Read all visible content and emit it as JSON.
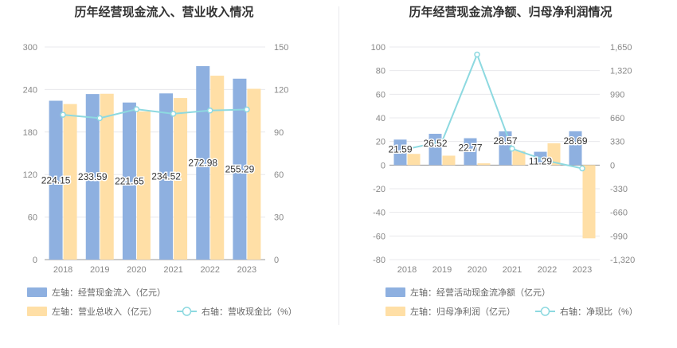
{
  "chart_data": [
    {
      "type": "bar",
      "title": "历年经营现金流入、营业收入情况",
      "categories": [
        "2018",
        "2019",
        "2020",
        "2021",
        "2022",
        "2023"
      ],
      "left_axis": {
        "min": 0,
        "max": 300,
        "ticks": [
          "0",
          "60",
          "120",
          "180",
          "240",
          "300"
        ]
      },
      "right_axis": {
        "min": 0,
        "max": 150,
        "ticks": [
          "0",
          "30",
          "60",
          "90",
          "120",
          "150"
        ]
      },
      "series": [
        {
          "name": "左轴：经营现金流入（亿元）",
          "kind": "bar",
          "axis": "left",
          "color": "#8eb0e0",
          "values": [
            224.15,
            233.59,
            221.65,
            234.52,
            272.98,
            255.29
          ],
          "labels": [
            "224.15",
            "233.59",
            "221.65",
            "234.52",
            "272.98",
            "255.29"
          ]
        },
        {
          "name": "左轴：营业总收入（亿元）",
          "kind": "bar",
          "axis": "left",
          "color": "#ffdfa6",
          "values": [
            219.5,
            234.0,
            209.0,
            228.0,
            259.5,
            241.0
          ]
        },
        {
          "name": "右轴：营收现金比（%）",
          "kind": "line",
          "axis": "right",
          "color": "#8dd9e0",
          "values": [
            102.2,
            99.8,
            106.1,
            102.9,
            105.2,
            105.9
          ]
        }
      ]
    },
    {
      "type": "bar",
      "title": "历年经营现金流净额、归母净利润情况",
      "categories": [
        "2018",
        "2019",
        "2020",
        "2021",
        "2022",
        "2023"
      ],
      "left_axis": {
        "min": -80,
        "max": 100,
        "ticks": [
          "-80",
          "-60",
          "-40",
          "-20",
          "0",
          "20",
          "40",
          "60",
          "80",
          "100"
        ]
      },
      "right_axis": {
        "min": -1320,
        "max": 1650,
        "ticks": [
          "-1,320",
          "-990",
          "-660",
          "-330",
          "0",
          "330",
          "660",
          "990",
          "1,320",
          "1,650"
        ]
      },
      "series": [
        {
          "name": "左轴：经营活动现金流净额（亿元）",
          "kind": "bar",
          "axis": "left",
          "color": "#8eb0e0",
          "values": [
            21.59,
            26.52,
            22.77,
            28.57,
            11.29,
            28.69
          ],
          "labels": [
            "21.59",
            "26.52",
            "22.77",
            "28.57",
            "11.29",
            "28.69"
          ]
        },
        {
          "name": "左轴：归母净利润（亿元）",
          "kind": "bar",
          "axis": "left",
          "color": "#ffdfa6",
          "values": [
            9.5,
            8.0,
            1.5,
            12.0,
            18.5,
            -62.0
          ]
        },
        {
          "name": "右轴：净现比（%）",
          "kind": "line",
          "axis": "right",
          "color": "#8dd9e0",
          "values": [
            225,
            330,
            1545,
            230,
            60,
            -46
          ]
        }
      ]
    }
  ]
}
